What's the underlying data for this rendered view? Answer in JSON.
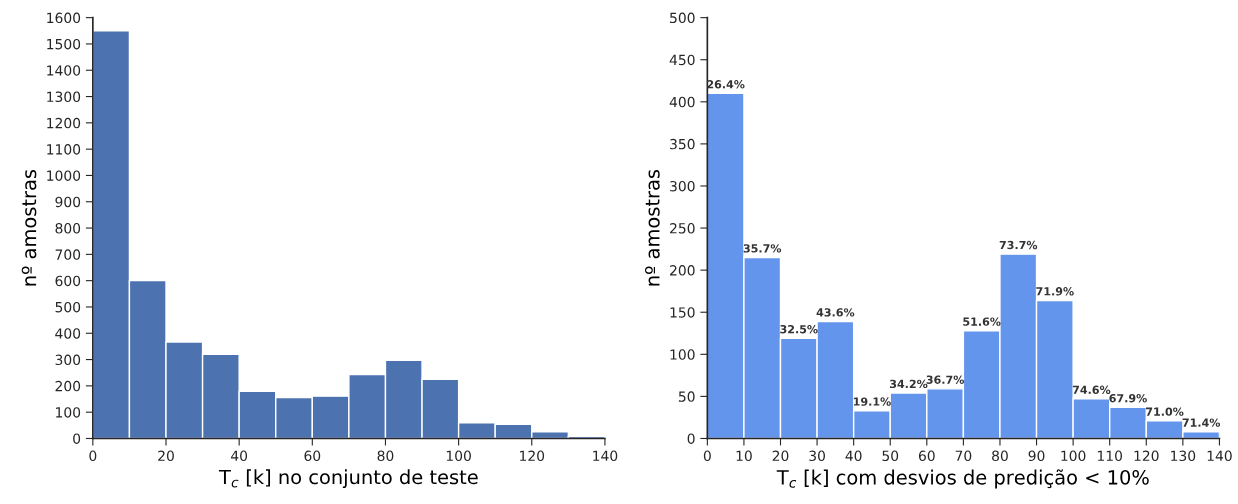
{
  "chart_data": [
    {
      "type": "histogram",
      "bins": [
        0,
        10,
        20,
        30,
        40,
        50,
        60,
        70,
        80,
        90,
        100,
        110,
        120,
        130,
        140
      ],
      "values": [
        1550,
        600,
        367,
        320,
        179,
        156,
        161,
        243,
        297,
        225,
        60,
        54,
        25,
        8
      ],
      "color": "#4c72b0",
      "xlabel": "T$_{c}$ [k] no conjunto de teste",
      "ylabel": "nº amostras",
      "xlim": [
        0,
        140
      ],
      "xticks": [
        0,
        20,
        40,
        60,
        80,
        100,
        120,
        140
      ],
      "ylim": [
        0,
        1600
      ],
      "yticks": [
        0,
        100,
        200,
        300,
        400,
        500,
        600,
        700,
        800,
        900,
        1000,
        1100,
        1200,
        1300,
        1400,
        1500,
        1600
      ],
      "grid": false
    },
    {
      "type": "histogram",
      "bins": [
        0,
        10,
        20,
        30,
        40,
        50,
        60,
        70,
        80,
        90,
        100,
        110,
        120,
        130,
        140
      ],
      "values": [
        410,
        215,
        119,
        139,
        33,
        54,
        59,
        128,
        219,
        164,
        47,
        37,
        21,
        8
      ],
      "color": "#6495ed",
      "xlabel": "T$_{c}$ [k] com desvios de predição < 10%",
      "ylabel": "nº amostras",
      "xlim": [
        0,
        140
      ],
      "xticks": [
        0,
        10,
        20,
        30,
        40,
        50,
        60,
        70,
        80,
        90,
        100,
        110,
        120,
        130,
        140
      ],
      "ylim": [
        0,
        500
      ],
      "yticks": [
        0,
        50,
        100,
        150,
        200,
        250,
        300,
        350,
        400,
        450,
        500
      ],
      "grid": false,
      "annotations": [
        {
          "text": "26.4%",
          "x": 5,
          "y": 410
        },
        {
          "text": "35.7%",
          "x": 15,
          "y": 215
        },
        {
          "text": "32.5%",
          "x": 25,
          "y": 119
        },
        {
          "text": "43.6%",
          "x": 35,
          "y": 139
        },
        {
          "text": "19.1%",
          "x": 45,
          "y": 33
        },
        {
          "text": "34.2%",
          "x": 55,
          "y": 54
        },
        {
          "text": "36.7%",
          "x": 65,
          "y": 59
        },
        {
          "text": "51.6%",
          "x": 75,
          "y": 128
        },
        {
          "text": "73.7%",
          "x": 85,
          "y": 219
        },
        {
          "text": "71.9%",
          "x": 95,
          "y": 164
        },
        {
          "text": "74.6%",
          "x": 105,
          "y": 47
        },
        {
          "text": "67.9%",
          "x": 115,
          "y": 37
        },
        {
          "text": "71.0%",
          "x": 125,
          "y": 21
        },
        {
          "text": "71.4%",
          "x": 135,
          "y": 8
        }
      ]
    }
  ]
}
